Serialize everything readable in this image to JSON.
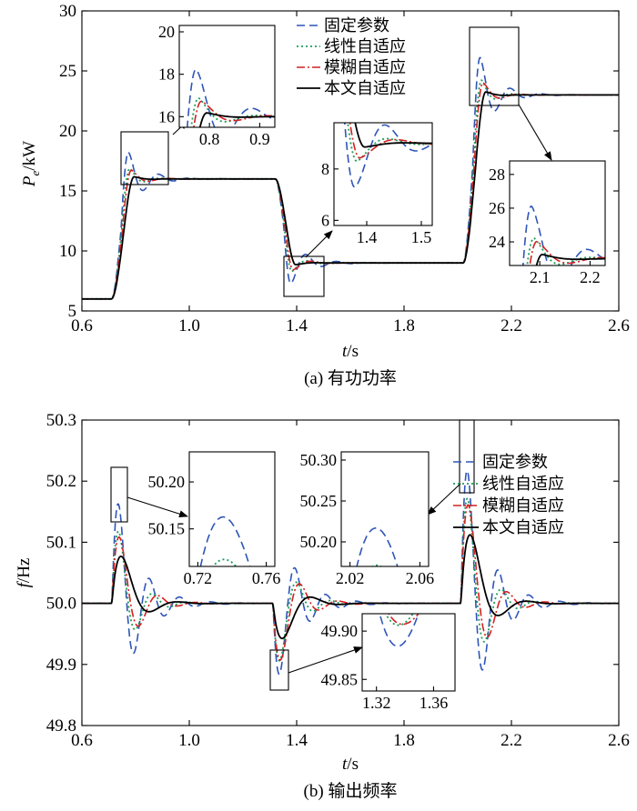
{
  "chart_data": [
    {
      "type": "line",
      "caption": "(a) 有功功率",
      "xlabel_italic": "t",
      "xlabel_unit": "/s",
      "ylabel_main": "P",
      "ylabel_sub": "e",
      "ylabel_unit": "/kW",
      "xlim": [
        0.6,
        2.6
      ],
      "ylim": [
        5,
        30
      ],
      "xticks": [
        "0.6",
        "1.0",
        "1.4",
        "1.8",
        "2.2",
        "2.6"
      ],
      "yticks": [
        "5",
        "10",
        "15",
        "20",
        "25",
        "30"
      ],
      "legend": [
        "固定参数",
        "线性自适应",
        "模糊自适应",
        "本文自适应"
      ],
      "colors": [
        "#2e55b8",
        "#1a9e5a",
        "#d42020",
        "#000000"
      ],
      "series": [
        {
          "name": "固定参数",
          "peak": 19.8,
          "under": 14.5
        },
        {
          "name": "线性自适应",
          "peak": 18.0,
          "under": 15.2
        },
        {
          "name": "模糊自适应",
          "peak": 17.6,
          "under": 15.5
        },
        {
          "name": "本文自适应",
          "peak": 16.6,
          "under": 15.8
        }
      ],
      "levels": [
        6,
        16,
        9,
        23
      ],
      "insets": [
        {
          "xticks": [
            "0.8",
            "0.9"
          ],
          "yticks": [
            "20",
            "18",
            "16"
          ]
        },
        {
          "xticks": [
            "1.4",
            "1.5"
          ],
          "yticks": [
            "8",
            "6"
          ]
        },
        {
          "xticks": [
            "2.1",
            "2.2"
          ],
          "yticks": [
            "28",
            "26",
            "24"
          ]
        }
      ]
    },
    {
      "type": "line",
      "caption": "(b) 输出频率",
      "xlabel_italic": "t",
      "xlabel_unit": "/s",
      "ylabel_main": "f",
      "ylabel_unit": "/Hz",
      "xlim": [
        0.6,
        2.6
      ],
      "ylim": [
        49.8,
        50.3
      ],
      "xticks": [
        "0.6",
        "1.0",
        "1.4",
        "1.8",
        "2.2",
        "2.6"
      ],
      "yticks": [
        "49.8",
        "49.9",
        "50.0",
        "50.1",
        "50.2",
        "50.3"
      ],
      "legend": [
        "固定参数",
        "线性自适应",
        "模糊自适应",
        "本文自适应"
      ],
      "insets": [
        {
          "xticks": [
            "0.72",
            "0.76"
          ],
          "yticks": [
            "50.20",
            "50.15"
          ]
        },
        {
          "xticks": [
            "2.02",
            "2.06"
          ],
          "yticks": [
            "50.30",
            "50.25",
            "50.20"
          ]
        },
        {
          "xticks": [
            "1.32",
            "1.36"
          ],
          "yticks": [
            "49.90",
            "49.85"
          ]
        }
      ]
    }
  ]
}
